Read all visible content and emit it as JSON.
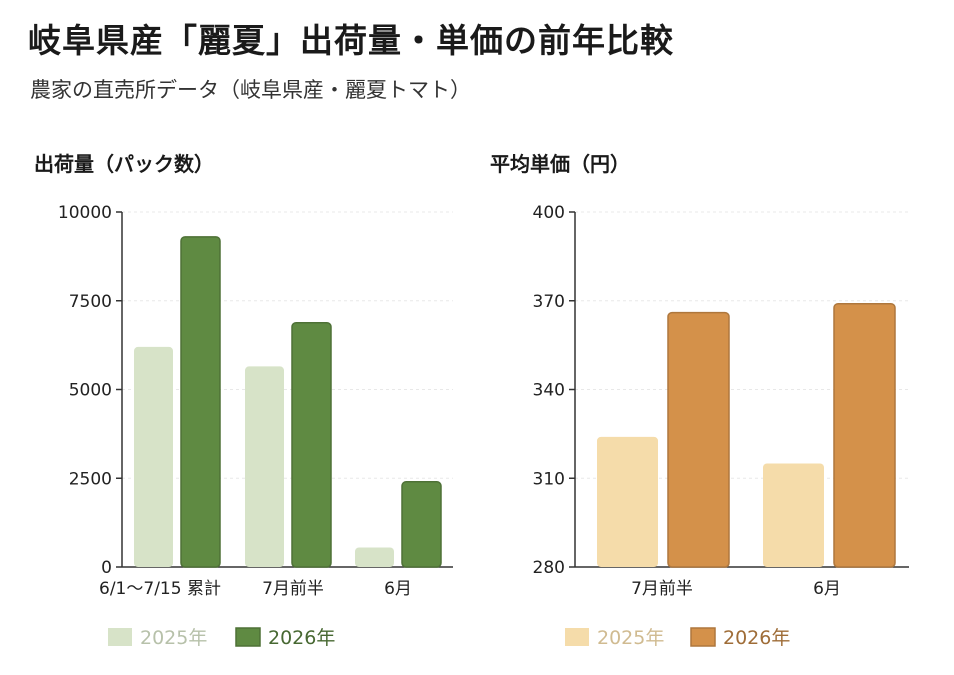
{
  "header": {
    "title": "岐阜県産「麗夏」出荷量・単価の前年比較",
    "subtitle": "農家の直売所データ（岐阜県産・麗夏トマト）"
  },
  "chart_data": [
    {
      "type": "bar",
      "title": "出荷量（パック数）",
      "categories": [
        "6/1〜7/15 累計",
        "7月前半",
        "6月"
      ],
      "series": [
        {
          "name": "2025年",
          "values": [
            6200,
            5650,
            550
          ],
          "color": "#d7e3c8"
        },
        {
          "name": "2026年",
          "values": [
            9300,
            6880,
            2400
          ],
          "color": "#5f8a42"
        }
      ],
      "ylim": [
        0,
        10000
      ],
      "yticks": [
        0,
        2500,
        5000,
        7500,
        10000
      ],
      "legend": "bottom"
    },
    {
      "type": "bar",
      "title": "平均単価（円）",
      "categories": [
        "7月前半",
        "6月"
      ],
      "series": [
        {
          "name": "2025年",
          "values": [
            324,
            315
          ],
          "color": "#f5dcaa"
        },
        {
          "name": "2026年",
          "values": [
            366,
            369
          ],
          "color": "#d4914a"
        }
      ],
      "ylim": [
        280,
        400
      ],
      "yticks": [
        280,
        310,
        340,
        370,
        400
      ],
      "legend": "bottom"
    }
  ]
}
